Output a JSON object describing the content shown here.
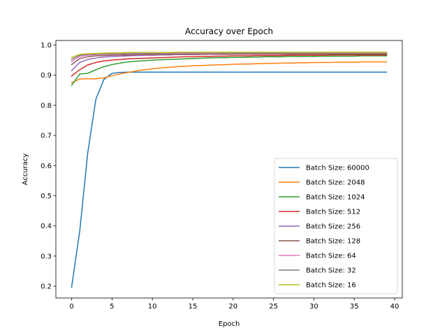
{
  "chart_data": {
    "type": "line",
    "title": "Accuracy over Epoch",
    "xlabel": "Epoch",
    "ylabel": "Accuracy",
    "xlim": [
      -1.95,
      40.95
    ],
    "ylim": [
      0.161,
      1.015
    ],
    "xticks": [
      0,
      5,
      10,
      15,
      20,
      25,
      30,
      35,
      40
    ],
    "yticks": [
      0.2,
      0.3,
      0.4,
      0.5,
      0.6,
      0.7,
      0.8,
      0.9,
      1.0
    ],
    "ytick_labels": [
      "0.2",
      "0.3",
      "0.4",
      "0.5",
      "0.6",
      "0.7",
      "0.8",
      "0.9",
      "1.0"
    ],
    "grid": false,
    "legend_position": "lower-right",
    "x": [
      0,
      1,
      2,
      3,
      4,
      5,
      6,
      7,
      8,
      9,
      10,
      11,
      12,
      13,
      14,
      15,
      16,
      17,
      18,
      19,
      20,
      21,
      22,
      23,
      24,
      25,
      26,
      27,
      28,
      29,
      30,
      31,
      32,
      33,
      34,
      35,
      36,
      37,
      38,
      39
    ],
    "series": [
      {
        "name": "Batch Size: 60000",
        "color": "#1f77b4",
        "values": [
          0.197,
          0.382,
          0.643,
          0.82,
          0.886,
          0.906,
          0.909,
          0.91,
          0.91,
          0.91,
          0.91,
          0.91,
          0.91,
          0.91,
          0.91,
          0.91,
          0.91,
          0.91,
          0.91,
          0.91,
          0.91,
          0.91,
          0.91,
          0.91,
          0.91,
          0.91,
          0.91,
          0.91,
          0.91,
          0.91,
          0.91,
          0.91,
          0.91,
          0.91,
          0.91,
          0.91,
          0.91,
          0.91,
          0.91,
          0.91
        ]
      },
      {
        "name": "Batch Size: 2048",
        "color": "#ff7f0e",
        "values": [
          0.875,
          0.887,
          0.888,
          0.888,
          0.891,
          0.898,
          0.904,
          0.909,
          0.914,
          0.918,
          0.921,
          0.924,
          0.926,
          0.928,
          0.929,
          0.931,
          0.932,
          0.933,
          0.934,
          0.935,
          0.936,
          0.937,
          0.937,
          0.938,
          0.939,
          0.939,
          0.94,
          0.94,
          0.941,
          0.941,
          0.942,
          0.942,
          0.942,
          0.943,
          0.943,
          0.943,
          0.944,
          0.944,
          0.944,
          0.944
        ]
      },
      {
        "name": "Batch Size: 1024",
        "color": "#2ca02c",
        "values": [
          0.866,
          0.904,
          0.906,
          0.918,
          0.928,
          0.935,
          0.94,
          0.944,
          0.946,
          0.948,
          0.95,
          0.951,
          0.952,
          0.953,
          0.954,
          0.955,
          0.956,
          0.957,
          0.958,
          0.958,
          0.959,
          0.959,
          0.96,
          0.96,
          0.961,
          0.961,
          0.961,
          0.962,
          0.962,
          0.962,
          0.962,
          0.963,
          0.963,
          0.963,
          0.963,
          0.963,
          0.964,
          0.964,
          0.964,
          0.964
        ]
      },
      {
        "name": "Batch Size: 512",
        "color": "#d62728",
        "values": [
          0.897,
          0.918,
          0.934,
          0.942,
          0.947,
          0.95,
          0.952,
          0.954,
          0.955,
          0.956,
          0.957,
          0.958,
          0.959,
          0.96,
          0.961,
          0.961,
          0.962,
          0.962,
          0.963,
          0.963,
          0.964,
          0.964,
          0.964,
          0.965,
          0.965,
          0.965,
          0.965,
          0.966,
          0.966,
          0.966,
          0.966,
          0.966,
          0.967,
          0.967,
          0.967,
          0.967,
          0.967,
          0.967,
          0.967,
          0.967
        ]
      },
      {
        "name": "Batch Size: 256",
        "color": "#9467bd",
        "values": [
          0.915,
          0.942,
          0.952,
          0.957,
          0.96,
          0.962,
          0.963,
          0.964,
          0.965,
          0.966,
          0.966,
          0.967,
          0.967,
          0.968,
          0.968,
          0.968,
          0.969,
          0.969,
          0.969,
          0.969,
          0.97,
          0.97,
          0.97,
          0.97,
          0.97,
          0.97,
          0.97,
          0.97,
          0.971,
          0.971,
          0.971,
          0.971,
          0.971,
          0.971,
          0.971,
          0.971,
          0.971,
          0.971,
          0.971,
          0.971
        ]
      },
      {
        "name": "Batch Size: 128",
        "color": "#8c564b",
        "values": [
          0.935,
          0.955,
          0.961,
          0.964,
          0.965,
          0.966,
          0.967,
          0.967,
          0.968,
          0.968,
          0.968,
          0.969,
          0.969,
          0.969,
          0.969,
          0.969,
          0.969,
          0.97,
          0.97,
          0.97,
          0.97,
          0.97,
          0.97,
          0.97,
          0.97,
          0.97,
          0.97,
          0.97,
          0.97,
          0.97,
          0.97,
          0.97,
          0.97,
          0.97,
          0.97,
          0.97,
          0.97,
          0.97,
          0.97,
          0.97
        ]
      },
      {
        "name": "Batch Size: 64",
        "color": "#e377c2",
        "values": [
          0.945,
          0.962,
          0.966,
          0.968,
          0.969,
          0.97,
          0.97,
          0.971,
          0.971,
          0.971,
          0.972,
          0.972,
          0.972,
          0.972,
          0.972,
          0.972,
          0.972,
          0.972,
          0.972,
          0.973,
          0.973,
          0.973,
          0.973,
          0.973,
          0.973,
          0.973,
          0.973,
          0.973,
          0.973,
          0.973,
          0.973,
          0.973,
          0.973,
          0.973,
          0.973,
          0.973,
          0.973,
          0.973,
          0.973,
          0.973
        ]
      },
      {
        "name": "Batch Size: 32",
        "color": "#7f7f7f",
        "values": [
          0.952,
          0.966,
          0.969,
          0.97,
          0.971,
          0.972,
          0.972,
          0.972,
          0.973,
          0.973,
          0.973,
          0.973,
          0.973,
          0.974,
          0.974,
          0.974,
          0.974,
          0.974,
          0.974,
          0.974,
          0.974,
          0.974,
          0.974,
          0.974,
          0.974,
          0.974,
          0.974,
          0.974,
          0.974,
          0.974,
          0.974,
          0.974,
          0.974,
          0.974,
          0.974,
          0.974,
          0.974,
          0.974,
          0.974,
          0.974
        ]
      },
      {
        "name": "Batch Size: 16",
        "color": "#bcbd22",
        "values": [
          0.958,
          0.969,
          0.971,
          0.972,
          0.973,
          0.974,
          0.974,
          0.975,
          0.975,
          0.975,
          0.975,
          0.975,
          0.975,
          0.976,
          0.976,
          0.976,
          0.976,
          0.976,
          0.976,
          0.976,
          0.976,
          0.976,
          0.976,
          0.976,
          0.976,
          0.976,
          0.976,
          0.976,
          0.976,
          0.976,
          0.976,
          0.976,
          0.976,
          0.976,
          0.976,
          0.976,
          0.976,
          0.976,
          0.976,
          0.976
        ]
      }
    ]
  }
}
